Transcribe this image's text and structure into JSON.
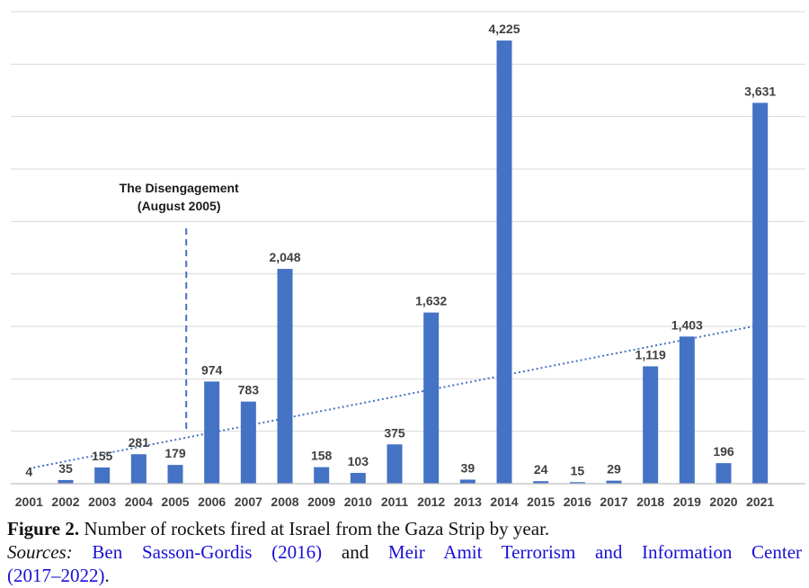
{
  "chart_data": {
    "type": "bar",
    "categories": [
      "2001",
      "2002",
      "2003",
      "2004",
      "2005",
      "2006",
      "2007",
      "2008",
      "2009",
      "2010",
      "2011",
      "2012",
      "2013",
      "2014",
      "2015",
      "2016",
      "2017",
      "2018",
      "2019",
      "2020",
      "2021"
    ],
    "values": [
      4,
      35,
      155,
      281,
      179,
      974,
      783,
      2048,
      158,
      103,
      375,
      1632,
      39,
      4225,
      24,
      15,
      29,
      1119,
      1403,
      196,
      3631
    ],
    "value_labels": [
      "4",
      "35",
      "155",
      "281",
      "179",
      "974",
      "783",
      "2,048",
      "158",
      "103",
      "375",
      "1,632",
      "39",
      "4,225",
      "24",
      "15",
      "29",
      "1,119",
      "1,403",
      "196",
      "3,631"
    ],
    "ylim": [
      0,
      4500
    ],
    "grid": true,
    "trendline": {
      "type": "linear",
      "style": "dotted"
    },
    "annotation": {
      "line1": "The Disengagement",
      "line2": "(August 2005)",
      "x_position": 2005.3
    },
    "colors": {
      "bar": "#4472c4",
      "grid": "#d9d9d9"
    }
  },
  "caption": {
    "figure_label": "Figure 2.",
    "figure_text": " Number of rockets fired at Israel from the Gaza Strip by year.",
    "sources_label": "Sources:",
    "source1": "Ben Sasson-Gordis (2016)",
    "connector": "and",
    "source2_part1": "Meir Amit Terrorism and Information Center",
    "source2_part2": "(2017–2022)",
    "end": "."
  }
}
